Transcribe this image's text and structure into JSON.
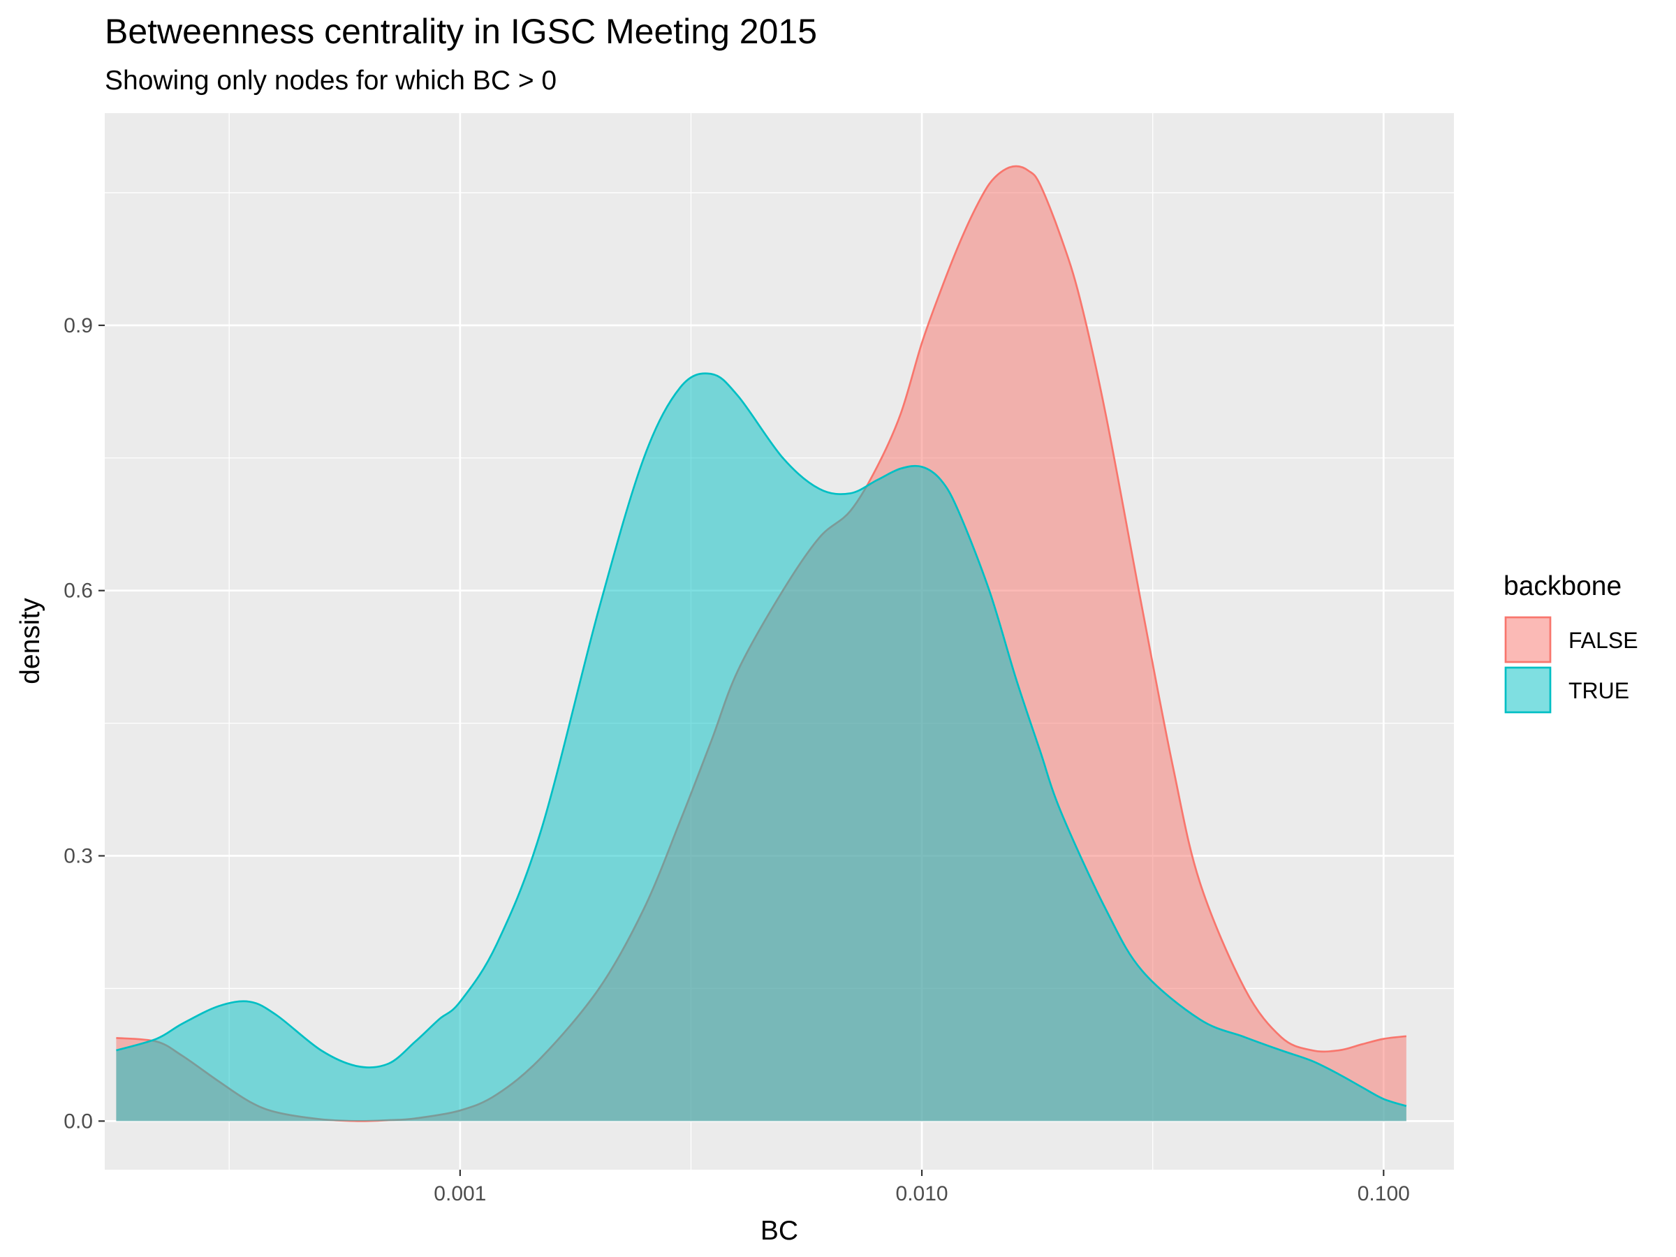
{
  "chart_data": {
    "type": "area",
    "title": "Betweenness centrality in IGSC Meeting 2015",
    "subtitle": "Showing only nodes for which BC > 0",
    "xlabel": "BC",
    "ylabel": "density",
    "x_scale": "log10",
    "xlim": [
      0.00017,
      0.142
    ],
    "ylim": [
      -0.055,
      1.14
    ],
    "x_ticks": [
      0.001,
      0.01,
      0.1
    ],
    "x_tick_labels": [
      "0.001",
      "0.010",
      "0.100"
    ],
    "y_ticks": [
      0,
      0.3,
      0.6,
      0.9
    ],
    "y_tick_labels": [
      "0.0",
      "0.3",
      "0.6",
      "0.9"
    ],
    "grid": true,
    "legend": {
      "title": "backbone",
      "position": "right",
      "entries": [
        "FALSE",
        "TRUE"
      ]
    },
    "series": [
      {
        "name": "FALSE",
        "color": "#F8766D",
        "fill": "#F8766D",
        "x": [
          0.00018,
          0.00022,
          0.00025,
          0.0003,
          0.00035,
          0.0004,
          0.0005,
          0.0006,
          0.0007,
          0.0008,
          0.001,
          0.0012,
          0.0015,
          0.002,
          0.0025,
          0.003,
          0.0035,
          0.004,
          0.005,
          0.006,
          0.007,
          0.008,
          0.009,
          0.01,
          0.011,
          0.012,
          0.013,
          0.014,
          0.015,
          0.016,
          0.017,
          0.018,
          0.02,
          0.022,
          0.025,
          0.03,
          0.035,
          0.04,
          0.05,
          0.06,
          0.07,
          0.08,
          0.09,
          0.1,
          0.112
        ],
        "y": [
          0.094,
          0.09,
          0.074,
          0.045,
          0.022,
          0.01,
          0.002,
          0.0,
          0.001,
          0.003,
          0.012,
          0.03,
          0.072,
          0.15,
          0.24,
          0.34,
          0.43,
          0.51,
          0.6,
          0.66,
          0.69,
          0.74,
          0.8,
          0.88,
          0.94,
          0.99,
          1.03,
          1.06,
          1.075,
          1.08,
          1.075,
          1.06,
          1.0,
          0.93,
          0.8,
          0.58,
          0.4,
          0.27,
          0.15,
          0.095,
          0.08,
          0.08,
          0.087,
          0.093,
          0.096
        ]
      },
      {
        "name": "TRUE",
        "color": "#00BFC4",
        "fill": "#00BFC4",
        "x": [
          0.00018,
          0.00022,
          0.00025,
          0.0003,
          0.00035,
          0.0004,
          0.0005,
          0.0006,
          0.0007,
          0.0008,
          0.0009,
          0.001,
          0.0012,
          0.0015,
          0.002,
          0.0025,
          0.003,
          0.0035,
          0.004,
          0.005,
          0.006,
          0.007,
          0.008,
          0.009,
          0.01,
          0.011,
          0.012,
          0.014,
          0.016,
          0.018,
          0.02,
          0.025,
          0.03,
          0.04,
          0.05,
          0.06,
          0.07,
          0.08,
          0.09,
          0.1,
          0.112
        ],
        "y": [
          0.08,
          0.093,
          0.11,
          0.13,
          0.135,
          0.12,
          0.08,
          0.062,
          0.065,
          0.09,
          0.115,
          0.135,
          0.2,
          0.33,
          0.58,
          0.75,
          0.83,
          0.845,
          0.82,
          0.75,
          0.715,
          0.71,
          0.725,
          0.738,
          0.74,
          0.725,
          0.69,
          0.6,
          0.5,
          0.42,
          0.35,
          0.24,
          0.17,
          0.115,
          0.095,
          0.08,
          0.068,
          0.053,
          0.038,
          0.025,
          0.017
        ]
      }
    ]
  }
}
